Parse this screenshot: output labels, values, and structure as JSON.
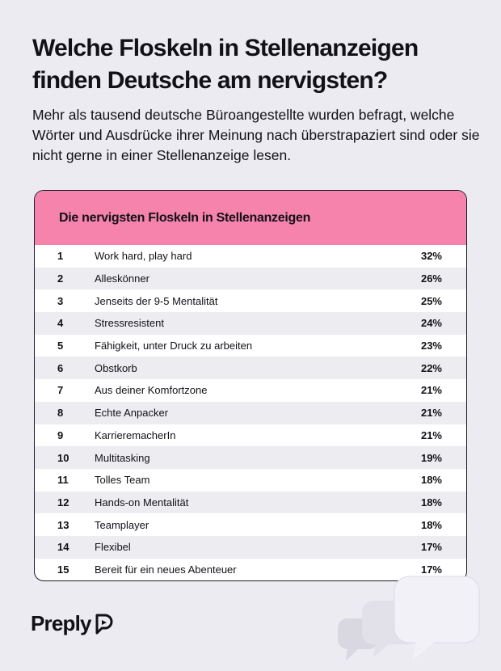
{
  "header": {
    "title": "Welche Floskeln in Stellenanzeigen finden Deutsche am nervigsten?",
    "subtitle": "Mehr als tausend deutsche Büroangestellte wurden befragt, welche Wörter und Ausdrücke ihrer Meinung nach überstrapaziert sind oder sie nicht gerne in einer Stellenanzeige lesen."
  },
  "table": {
    "title": "Die nervigsten Floskeln in Stellenanzeigen",
    "rows": [
      [
        "1",
        "Work hard, play hard",
        "32%"
      ],
      [
        "2",
        "Alleskönner",
        "26%"
      ],
      [
        "3",
        "Jenseits der 9-5 Mentalität",
        "25%"
      ],
      [
        "4",
        "Stressresistent",
        "24%"
      ],
      [
        "5",
        "Fähigkeit, unter Druck zu arbeiten",
        "23%"
      ],
      [
        "6",
        "Obstkorb",
        "22%"
      ],
      [
        "7",
        "Aus deiner Komfortzone",
        "21%"
      ],
      [
        "8",
        "Echte Anpacker",
        "21%"
      ],
      [
        "9",
        "KarrieremacherIn",
        "21%"
      ],
      [
        "10",
        "Multitasking",
        "19%"
      ],
      [
        "11",
        "Tolles Team",
        "18%"
      ],
      [
        "12",
        "Hands-on Mentalität",
        "18%"
      ],
      [
        "13",
        "Teamplayer",
        "18%"
      ],
      [
        "14",
        "Flexibel",
        "17%"
      ],
      [
        "15",
        "Bereit für ein neues Abenteuer",
        "17%"
      ]
    ]
  },
  "brand": {
    "name": "Preply"
  }
}
